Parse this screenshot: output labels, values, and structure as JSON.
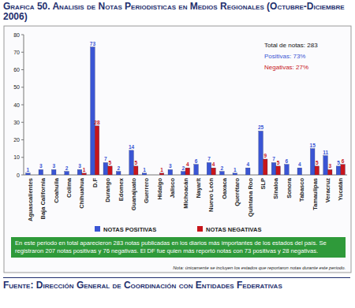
{
  "chart_data": {
    "type": "bar",
    "title": "Grafica 50. Analisis de Notas Periodisticas en Medios Regionales (Octubre-Diciembre 2006)",
    "categories": [
      "Aguascalientes",
      "Baja California",
      "Coahuila",
      "Colima",
      "Chihuahua",
      "D.F",
      "Durango",
      "Edomex",
      "Guanajuato",
      "Guerrero",
      "Hidalgo",
      "Jalisco",
      "Michoacán",
      "Nayarit",
      "Nuevo León",
      "Oaxaca",
      "Querétaro",
      "Quintana Roo",
      "SLP",
      "Sinaloa",
      "Sonora",
      "Tabasco",
      "Tamaulipas",
      "Veracruz",
      "Yucatán"
    ],
    "series": [
      {
        "name": "NOTAS POSITIVAS",
        "color": "#3a55d4",
        "values": [
          1,
          3,
          3,
          2,
          3,
          73,
          7,
          2,
          14,
          1,
          null,
          3,
          2,
          6,
          7,
          2,
          1,
          4,
          25,
          7,
          6,
          4,
          15,
          11,
          5
        ]
      },
      {
        "name": "NOTAS NEGATIVAS",
        "color": "#c8151b",
        "values": [
          null,
          null,
          null,
          null,
          1,
          28,
          5,
          null,
          5,
          null,
          1,
          null,
          4,
          null,
          4,
          null,
          null,
          null,
          9,
          5,
          null,
          null,
          5,
          3,
          6
        ]
      }
    ],
    "ylim": [
      0,
      80
    ],
    "yticks": [
      0,
      10,
      20,
      30,
      40,
      50,
      60,
      70,
      80
    ],
    "grid": false,
    "legend": "bottom",
    "data_labels": true,
    "annotations": [
      "Total de notas: 283",
      "Positivas: 73%",
      "Negativas: 27%",
      "En este periodo en total aparecieron 283 notas publicadas en los diarios más importantes de los estados del país. Se registraron 207 notas  positivas y 76 negativas. El DF fue quien más reportó notas con 73 positivas y 28 negativas.",
      "Nota: únicamente se incluyen los estados que reportaron notas durante este periodo.",
      "Fuente: Dirección General de Coordinación con Entidades Federativas"
    ]
  }
}
